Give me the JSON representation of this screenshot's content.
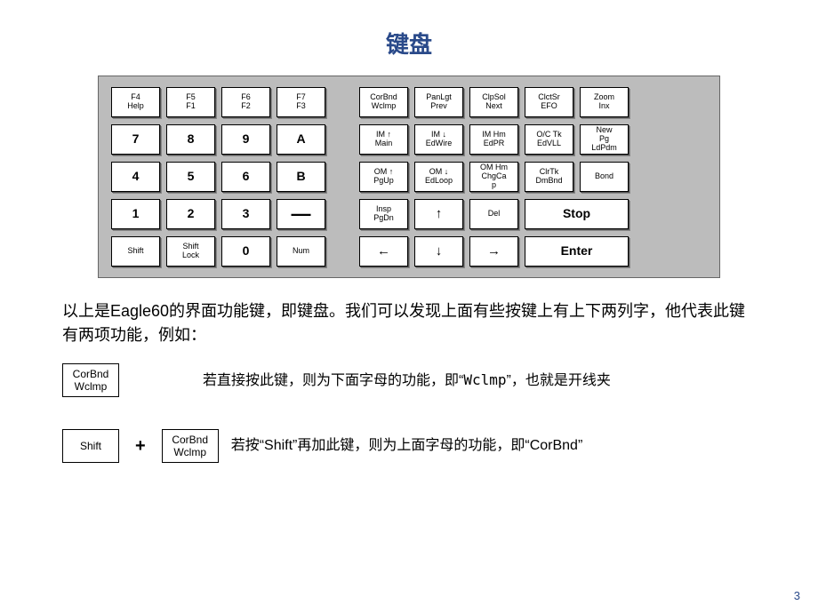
{
  "title": {
    "text": "键盘",
    "color": "#2a4a8a"
  },
  "keyboard": {
    "bg": "#bcbcbc",
    "rows": [
      {
        "left": [
          {
            "t": "F4",
            "b": "Help"
          },
          {
            "t": "F5",
            "b": "F1"
          },
          {
            "t": "F6",
            "b": "F2"
          },
          {
            "t": "F7",
            "b": "F3"
          }
        ],
        "right": [
          {
            "t": "CorBnd",
            "b": "Wclmp"
          },
          {
            "t": "PanLgt",
            "b": "Prev"
          },
          {
            "t": "ClpSol",
            "b": "Next"
          },
          {
            "t": "ClctSr",
            "b": "EFO"
          },
          {
            "t": "Zoom",
            "b": "Inx"
          }
        ]
      },
      {
        "left": [
          {
            "big": "7"
          },
          {
            "big": "8"
          },
          {
            "big": "9"
          },
          {
            "big": "A"
          }
        ],
        "right": [
          {
            "t": "IM ↑",
            "b": "Main"
          },
          {
            "t": "IM ↓",
            "b": "EdWire"
          },
          {
            "t": "IM Hm",
            "b": "EdPR"
          },
          {
            "t": "O/C Tk",
            "b": "EdVLL"
          },
          {
            "t": "New",
            "b": "Pg",
            "b2": "LdPdm"
          }
        ]
      },
      {
        "left": [
          {
            "big": "4"
          },
          {
            "big": "5"
          },
          {
            "big": "6"
          },
          {
            "big": "B"
          }
        ],
        "right": [
          {
            "t": "OM ↑",
            "b": "PgUp"
          },
          {
            "t": "OM ↓",
            "b": "EdLoop"
          },
          {
            "t": "OM Hm",
            "b": "ChgCa",
            "b2": "p"
          },
          {
            "t": "ClrTk",
            "b": "DmBnd"
          },
          {
            "t": "Bond",
            "b": ""
          }
        ]
      },
      {
        "left": [
          {
            "big": "1"
          },
          {
            "big": "2"
          },
          {
            "big": "3"
          },
          {
            "dash": "—"
          }
        ],
        "right": [
          {
            "t": "Insp",
            "b": "PgDn"
          },
          {
            "arrow": "↑"
          },
          {
            "t": "Del",
            "b": ""
          },
          {
            "wide": true,
            "big": "Stop"
          }
        ]
      },
      {
        "left": [
          {
            "t": "Shift",
            "b": ""
          },
          {
            "t": "Shift",
            "b": "Lock"
          },
          {
            "big": "0"
          },
          {
            "t": "Num",
            "b": ""
          }
        ],
        "right": [
          {
            "arrow": "←"
          },
          {
            "arrow": "↓"
          },
          {
            "arrow": "→"
          },
          {
            "wide": true,
            "big": "Enter"
          }
        ]
      }
    ]
  },
  "explain": {
    "para": "以上是Eagle60的界面功能键，即键盘。我们可以发现上面有些按键上有上下两列字，他代表此键有两项功能，例如：",
    "ex1_key": {
      "t": "CorBnd",
      "b": "Wclmp"
    },
    "ex1_text_a": "若直接按此键，则为下面字母的功能，即“",
    "ex1_text_mono": "Wclmp",
    "ex1_text_b": "”，也就是开线夹",
    "ex2_shift": "Shift",
    "ex2_plus": "+",
    "ex2_key": {
      "t": "CorBnd",
      "b": "Wclmp"
    },
    "ex2_text_a": "若按“Shift”再加此键，则为上面字母的功能，即“CorBnd”"
  },
  "pagenum": {
    "text": "3",
    "color": "#2a4a8a"
  }
}
